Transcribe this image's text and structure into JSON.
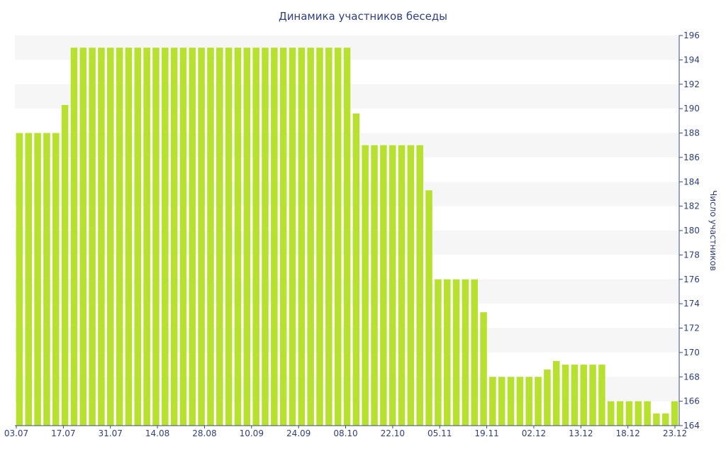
{
  "chart_data": {
    "type": "bar",
    "title": "Динамика участников беседы",
    "xlabel": "",
    "ylabel": "Число участников",
    "y_axis_position": "right",
    "ylim": [
      164,
      196
    ],
    "y_ticks": [
      164,
      166,
      168,
      170,
      172,
      174,
      176,
      178,
      180,
      182,
      184,
      186,
      188,
      190,
      192,
      194,
      196
    ],
    "x_tick_labels": [
      "03.07",
      "17.07",
      "31.07",
      "14.08",
      "28.08",
      "10.09",
      "24.09",
      "08.10",
      "22.10",
      "05.11",
      "19.11",
      "02.12",
      "13.12",
      "18.12",
      "23.12"
    ],
    "values": [
      188,
      188,
      188,
      188,
      188,
      190.3,
      195,
      195,
      195,
      195,
      195,
      195,
      195,
      195,
      195,
      195,
      195,
      195,
      195,
      195,
      195,
      195,
      195,
      195,
      195,
      195,
      195,
      195,
      195,
      195,
      195,
      195,
      195,
      195,
      195,
      195,
      195,
      189.6,
      187,
      187,
      187,
      187,
      187,
      187,
      187,
      183.3,
      176,
      176,
      176,
      176,
      176,
      173.3,
      168,
      168,
      168,
      168,
      168,
      168,
      168.6,
      169.3,
      169,
      169,
      169,
      169,
      169,
      166,
      166,
      166,
      166,
      166,
      165,
      165,
      166
    ],
    "grid": "horizontal bands",
    "legend": "none",
    "colors": {
      "bar": "#b8e02e",
      "band": "#f6f6f6",
      "text": "#2f3f7f",
      "axis": "#3a4a8a"
    }
  }
}
